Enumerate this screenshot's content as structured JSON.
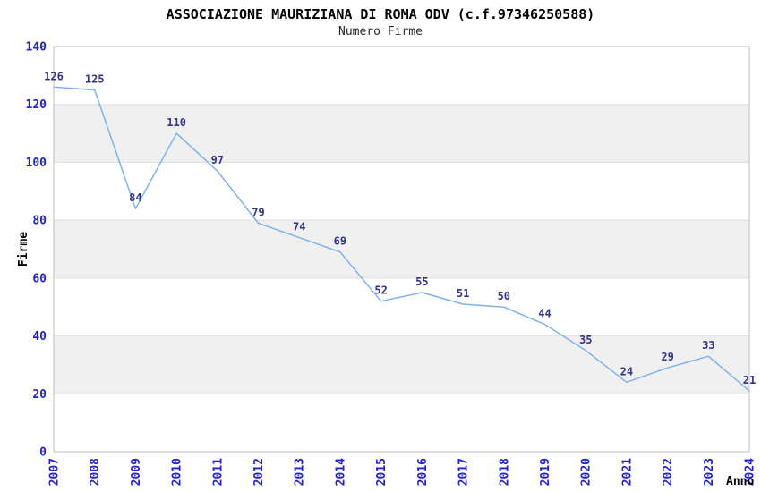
{
  "chart_data": {
    "type": "line",
    "title": "ASSOCIAZIONE MAURIZIANA DI ROMA ODV (c.f.97346250588)",
    "subtitle": "Numero Firme",
    "xlabel": "Anno",
    "ylabel": "Firme",
    "categories": [
      "2007",
      "2008",
      "2009",
      "2010",
      "2011",
      "2012",
      "2013",
      "2014",
      "2015",
      "2016",
      "2017",
      "2018",
      "2019",
      "2020",
      "2021",
      "2022",
      "2023",
      "2024"
    ],
    "values": [
      126,
      125,
      84,
      110,
      97,
      79,
      74,
      69,
      52,
      55,
      51,
      50,
      44,
      35,
      24,
      29,
      33,
      21
    ],
    "ylim": [
      0,
      140
    ],
    "yticks": [
      0,
      20,
      40,
      60,
      80,
      100,
      120,
      140
    ],
    "grid": true,
    "legend": "none",
    "band_pattern": "alternating-horizontal",
    "colors": {
      "line": "#7FB2E9",
      "tick_label": "#2222CC",
      "data_label": "#333388",
      "band": "#F0F0F0",
      "grid": "#DDDDDD",
      "border": "#BDBDBD",
      "title": "#000000",
      "subtitle": "#2B2B2B",
      "axis_title": "#000000",
      "background": "#FFFFFF"
    }
  }
}
